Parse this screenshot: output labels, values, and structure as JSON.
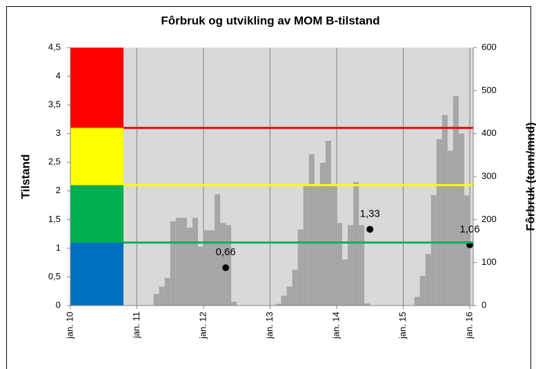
{
  "chart_data": {
    "type": "bar",
    "title": "Fôrbruk og utvikling av MOM B-tilstand",
    "ylabel": "Tilstand",
    "y2label": "Fôrbruk (tonn/mnd)",
    "xlim": [
      "2010-01",
      "2016-01"
    ],
    "xticks": [
      {
        "value": "2010-01",
        "label": "jan. 10"
      },
      {
        "value": "2011-01",
        "label": "jan. 11"
      },
      {
        "value": "2012-01",
        "label": "jan. 12"
      },
      {
        "value": "2013-01",
        "label": "jan. 13"
      },
      {
        "value": "2014-01",
        "label": "jan. 14"
      },
      {
        "value": "2015-01",
        "label": "jan. 15"
      },
      {
        "value": "2016-01",
        "label": "jan. 16"
      }
    ],
    "ylim": [
      0,
      4.5
    ],
    "yticks": [
      0,
      {
        "value": 0.5,
        "label": "0,5"
      },
      1,
      {
        "value": 1.5,
        "label": "1,5"
      },
      2,
      {
        "value": 2.5,
        "label": "2,5"
      },
      3,
      {
        "value": 3.5,
        "label": "3,5"
      },
      4,
      {
        "value": 4.5,
        "label": "4,5"
      }
    ],
    "y2lim": [
      0,
      600
    ],
    "y2ticks": [
      0,
      100,
      200,
      300,
      400,
      500,
      600
    ],
    "grid": true,
    "thresholds": [
      {
        "from": 0,
        "to": 1.1,
        "color": "#0070c0",
        "line": false
      },
      {
        "from": 1.1,
        "to": 2.1,
        "color": "#00b050",
        "line": true
      },
      {
        "from": 2.1,
        "to": 3.1,
        "color": "#ffff00",
        "line": true
      },
      {
        "from": 3.1,
        "to": 4.5,
        "color": "#ff0000",
        "line": true
      }
    ],
    "series": [
      {
        "type": "bar",
        "axis": "y2",
        "color": "#a6a6a6",
        "x": [
          "2011-04",
          "2011-05",
          "2011-06",
          "2011-07",
          "2011-08",
          "2011-09",
          "2011-10",
          "2011-11",
          "2011-12",
          "2012-01",
          "2012-02",
          "2012-03",
          "2012-04",
          "2012-05",
          "2012-06",
          "2013-02",
          "2013-03",
          "2013-04",
          "2013-05",
          "2013-06",
          "2013-07",
          "2013-08",
          "2013-09",
          "2013-10",
          "2013-11",
          "2013-12",
          "2014-01",
          "2014-02",
          "2014-03",
          "2014-04",
          "2014-05",
          "2014-06",
          "2015-03",
          "2015-04",
          "2015-05",
          "2015-06",
          "2015-07",
          "2015-08",
          "2015-09",
          "2015-10",
          "2015-11",
          "2015-12"
        ],
        "values": [
          27,
          44,
          64,
          196,
          204,
          204,
          181,
          204,
          137,
          175,
          175,
          259,
          192,
          187,
          9,
          4,
          23,
          44,
          83,
          177,
          280,
          352,
          280,
          332,
          383,
          280,
          192,
          107,
          187,
          287,
          187,
          5,
          20,
          69,
          120,
          257,
          387,
          443,
          360,
          487,
          400,
          256
        ]
      },
      {
        "type": "scatter",
        "color": "#000000",
        "x": [
          "2012-05",
          "2014-07",
          "2016-01"
        ],
        "values": [
          0.66,
          1.33,
          1.06
        ],
        "value_labels": [
          "0,66",
          "1,33",
          "1,06"
        ]
      }
    ]
  }
}
